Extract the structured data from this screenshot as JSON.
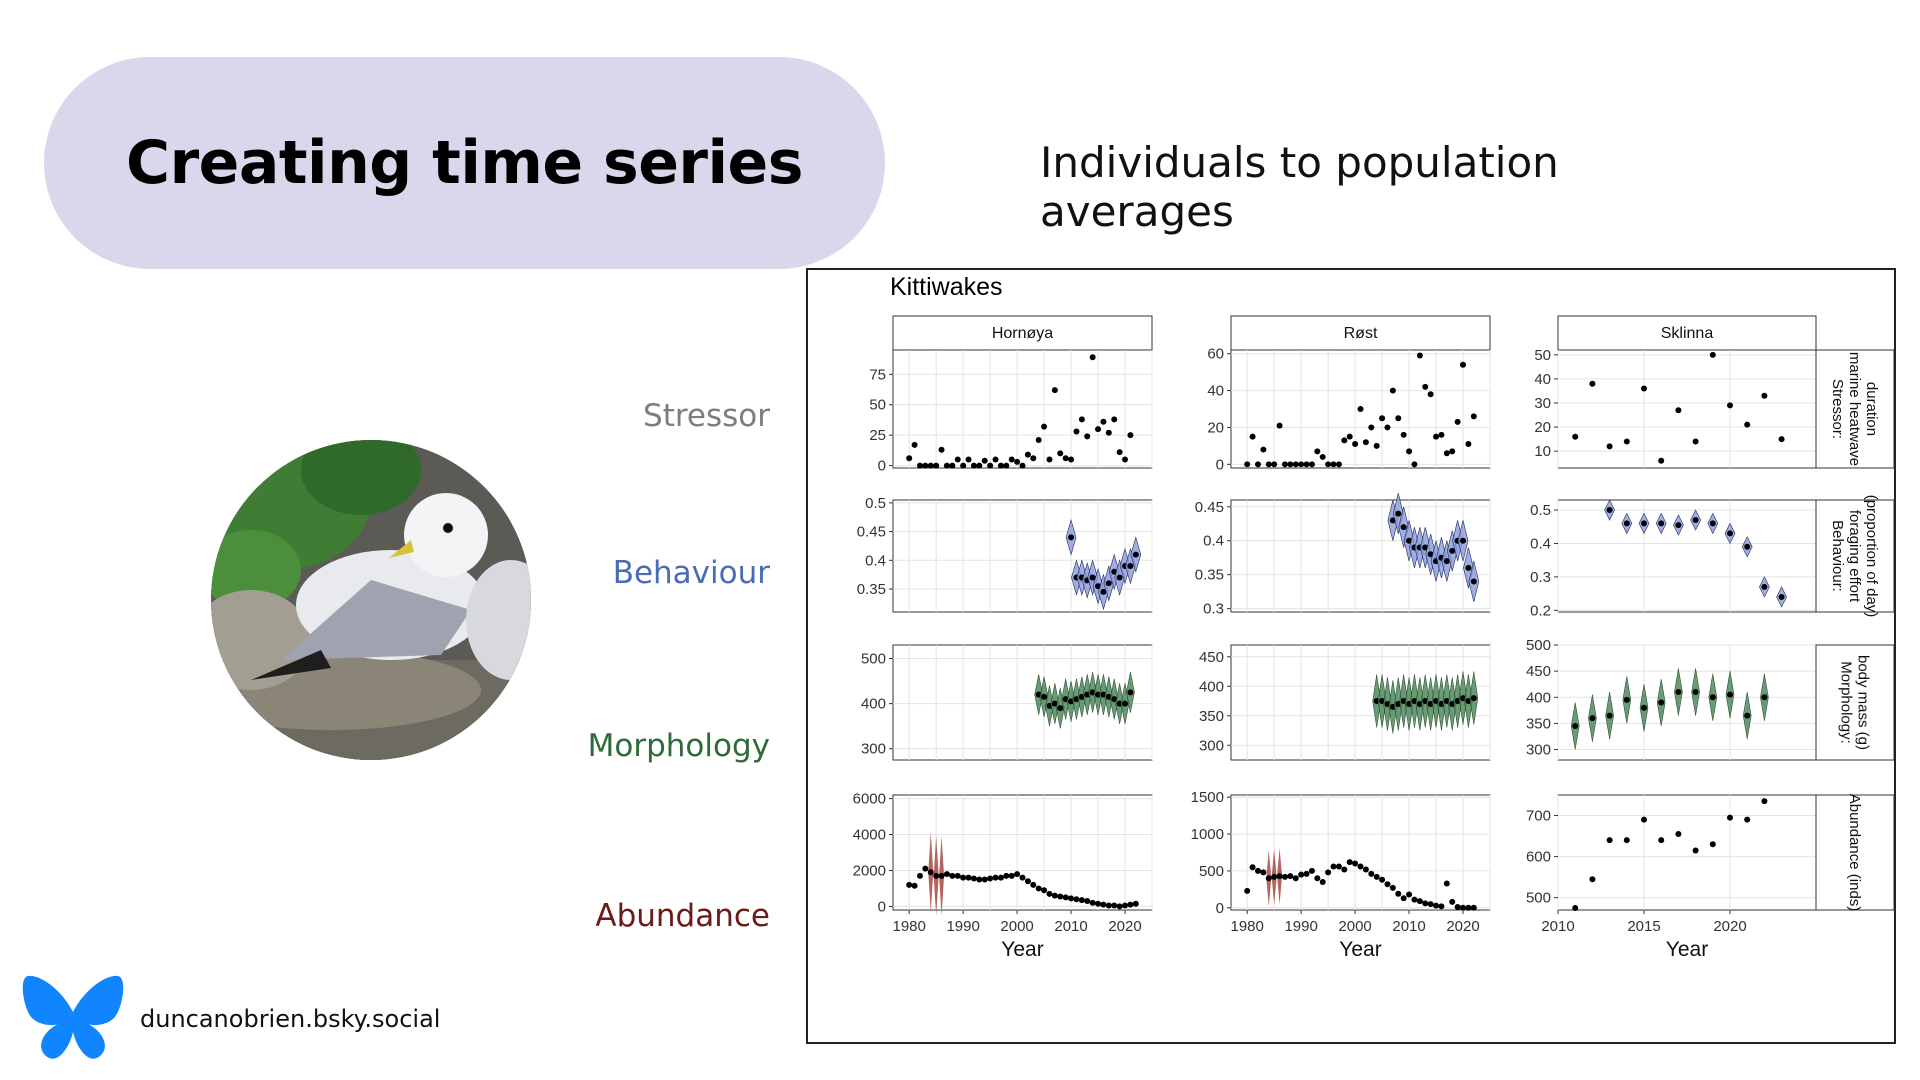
{
  "slide": {
    "title": "Creating time series",
    "subtitle": "Individuals to population averages",
    "handle": "duncanobrien.bsky.social",
    "row_labels": [
      {
        "text": "Stressor",
        "color": "#7d7d7d"
      },
      {
        "text": "Behaviour",
        "color": "#4a6cb6"
      },
      {
        "text": "Morphology",
        "color": "#2f6b38"
      },
      {
        "text": "Abundance",
        "color": "#6b1a18"
      }
    ],
    "icons": {
      "logo": "butterfly-logo-icon",
      "photo": "kittiwake-photo"
    },
    "colors": {
      "pill": "#dcd6ec",
      "logo": "#1185fe",
      "behaviour_fill": "#8a9bd8",
      "morphology_fill": "#4f8a5c",
      "abundance_fill": "#a0403a"
    }
  },
  "chart_data": {
    "type": "scatter",
    "title": "Kittiwakes",
    "xlabel": "Year",
    "columns": [
      "Hornøya",
      "Røst",
      "Sklinna"
    ],
    "rows": [
      "Stressor: marine heatwave duration",
      "Behaviour: foraging effort (proportion of day)",
      "Morphology: body mass (g)",
      "Abundance (inds)"
    ],
    "xlims": [
      [
        1977,
        2025
      ],
      [
        1977,
        2025
      ],
      [
        2010,
        2025
      ]
    ],
    "xticks": [
      [
        1980,
        1990,
        2000,
        2010,
        2020
      ],
      [
        1980,
        1990,
        2000,
        2010,
        2020
      ],
      [
        2010,
        2015,
        2020
      ]
    ],
    "panels": [
      [
        {
          "ylim": [
            -2,
            95
          ],
          "yticks": [
            0,
            25,
            50,
            75
          ],
          "x": [
            1980,
            1981,
            1982,
            1983,
            1984,
            1985,
            1986,
            1987,
            1988,
            1989,
            1990,
            1991,
            1992,
            1993,
            1994,
            1995,
            1996,
            1997,
            1998,
            1999,
            2000,
            2001,
            2002,
            2003,
            2004,
            2005,
            2006,
            2007,
            2008,
            2009,
            2010,
            2011,
            2012,
            2013,
            2014,
            2015,
            2016,
            2017,
            2018,
            2019,
            2020,
            2021
          ],
          "y": [
            6,
            17,
            0,
            0,
            0,
            0,
            13,
            0,
            0,
            5,
            0,
            5,
            0,
            0,
            4,
            0,
            5,
            0,
            0,
            5,
            3,
            0,
            9,
            6,
            21,
            32,
            5,
            62,
            10,
            6,
            5,
            28,
            38,
            24,
            89,
            30,
            36,
            27,
            38,
            11,
            5,
            25
          ]
        },
        {
          "ylim": [
            0.31,
            0.505
          ],
          "yticks": [
            0.35,
            0.4,
            0.45,
            0.5
          ],
          "x": [
            2010,
            2011,
            2012,
            2013,
            2014,
            2015,
            2016,
            2017,
            2018,
            2019,
            2020,
            2021,
            2022
          ],
          "y": [
            0.44,
            0.37,
            0.37,
            0.365,
            0.37,
            0.355,
            0.345,
            0.36,
            0.38,
            0.37,
            0.39,
            0.39,
            0.41
          ]
        },
        {
          "ylim": [
            275,
            530
          ],
          "yticks": [
            300,
            400,
            500
          ],
          "x": [
            2004,
            2005,
            2006,
            2007,
            2008,
            2009,
            2010,
            2011,
            2012,
            2013,
            2014,
            2015,
            2016,
            2017,
            2018,
            2019,
            2020,
            2021
          ],
          "y": [
            420,
            415,
            395,
            400,
            390,
            410,
            405,
            410,
            415,
            420,
            425,
            420,
            420,
            415,
            410,
            400,
            400,
            425
          ]
        },
        {
          "ylim": [
            -200,
            6200
          ],
          "yticks": [
            0,
            2000,
            4000,
            6000
          ],
          "x": [
            1980,
            1981,
            1982,
            1983,
            1984,
            1985,
            1986,
            1987,
            1988,
            1989,
            1990,
            1991,
            1992,
            1993,
            1994,
            1995,
            1996,
            1997,
            1998,
            1999,
            2000,
            2001,
            2002,
            2003,
            2004,
            2005,
            2006,
            2007,
            2008,
            2009,
            2010,
            2011,
            2012,
            2013,
            2014,
            2015,
            2016,
            2017,
            2018,
            2019,
            2020,
            2021,
            2022
          ],
          "y": [
            1200,
            1150,
            1700,
            2100,
            1900,
            1700,
            1700,
            1800,
            1700,
            1700,
            1600,
            1600,
            1550,
            1500,
            1500,
            1550,
            1600,
            1600,
            1700,
            1700,
            1800,
            1600,
            1400,
            1200,
            1000,
            900,
            700,
            600,
            550,
            500,
            450,
            400,
            350,
            300,
            200,
            150,
            100,
            50,
            50,
            0,
            50,
            100,
            150
          ]
        }
      ],
      [
        {
          "ylim": [
            -2,
            62
          ],
          "yticks": [
            0,
            20,
            40,
            60
          ],
          "x": [
            1980,
            1981,
            1982,
            1983,
            1984,
            1985,
            1986,
            1987,
            1988,
            1989,
            1990,
            1991,
            1992,
            1993,
            1994,
            1995,
            1996,
            1997,
            1998,
            1999,
            2000,
            2001,
            2002,
            2003,
            2004,
            2005,
            2006,
            2007,
            2008,
            2009,
            2010,
            2011,
            2012,
            2013,
            2014,
            2015,
            2016,
            2017,
            2018,
            2019,
            2020,
            2021,
            2022
          ],
          "y": [
            0,
            15,
            0,
            8,
            0,
            0,
            21,
            0,
            0,
            0,
            0,
            0,
            0,
            7,
            4,
            0,
            0,
            0,
            13,
            15,
            11,
            30,
            12,
            20,
            10,
            25,
            20,
            40,
            25,
            16,
            7,
            0,
            59,
            42,
            38,
            15,
            16,
            6,
            7,
            23,
            54,
            11,
            26
          ]
        },
        {
          "ylim": [
            0.295,
            0.46
          ],
          "yticks": [
            0.3,
            0.35,
            0.4,
            0.45
          ],
          "x": [
            2007,
            2008,
            2009,
            2010,
            2011,
            2012,
            2013,
            2014,
            2015,
            2016,
            2017,
            2018,
            2019,
            2020,
            2021,
            2022
          ],
          "y": [
            0.43,
            0.44,
            0.42,
            0.4,
            0.39,
            0.39,
            0.39,
            0.38,
            0.37,
            0.375,
            0.37,
            0.385,
            0.4,
            0.4,
            0.36,
            0.34
          ]
        },
        {
          "ylim": [
            275,
            470
          ],
          "yticks": [
            300,
            350,
            400,
            450
          ],
          "x": [
            2004,
            2005,
            2006,
            2007,
            2008,
            2009,
            2010,
            2011,
            2012,
            2013,
            2014,
            2015,
            2016,
            2017,
            2018,
            2019,
            2020,
            2021,
            2022
          ],
          "y": [
            375,
            375,
            370,
            365,
            370,
            375,
            370,
            375,
            370,
            375,
            370,
            375,
            370,
            375,
            370,
            375,
            380,
            375,
            380
          ]
        },
        {
          "ylim": [
            -30,
            1530
          ],
          "yticks": [
            0,
            500,
            1000,
            1500
          ],
          "x": [
            1980,
            1981,
            1982,
            1983,
            1984,
            1985,
            1986,
            1987,
            1988,
            1989,
            1990,
            1991,
            1992,
            1993,
            1994,
            1995,
            1996,
            1997,
            1998,
            1999,
            2000,
            2001,
            2002,
            2003,
            2004,
            2005,
            2006,
            2007,
            2008,
            2009,
            2010,
            2011,
            2012,
            2013,
            2014,
            2015,
            2016,
            2017,
            2018,
            2019,
            2020,
            2021,
            2022
          ],
          "y": [
            230,
            550,
            500,
            480,
            400,
            420,
            430,
            420,
            430,
            400,
            450,
            460,
            500,
            400,
            350,
            480,
            560,
            560,
            520,
            620,
            600,
            560,
            520,
            460,
            420,
            380,
            320,
            270,
            190,
            130,
            180,
            110,
            90,
            60,
            50,
            30,
            20,
            330,
            80,
            10,
            0,
            0,
            0
          ]
        }
      ],
      [
        {
          "ylim": [
            3,
            52
          ],
          "yticks": [
            10,
            20,
            30,
            40,
            50
          ],
          "x": [
            2011,
            2012,
            2013,
            2014,
            2015,
            2016,
            2017,
            2018,
            2019,
            2020,
            2021,
            2022,
            2023
          ],
          "y": [
            16,
            38,
            12,
            14,
            36,
            6,
            27,
            14,
            50,
            29,
            21,
            33,
            15
          ]
        },
        {
          "ylim": [
            0.195,
            0.53
          ],
          "yticks": [
            0.2,
            0.3,
            0.4,
            0.5
          ],
          "x": [
            2013,
            2014,
            2015,
            2016,
            2017,
            2018,
            2019,
            2020,
            2021,
            2022,
            2023
          ],
          "y": [
            0.5,
            0.46,
            0.46,
            0.46,
            0.455,
            0.47,
            0.46,
            0.43,
            0.39,
            0.27,
            0.24
          ]
        },
        {
          "ylim": [
            280,
            500
          ],
          "yticks": [
            300,
            350,
            400,
            450,
            500
          ],
          "x": [
            2011,
            2012,
            2013,
            2014,
            2015,
            2016,
            2017,
            2018,
            2019,
            2020,
            2021,
            2022
          ],
          "y": [
            345,
            360,
            365,
            395,
            380,
            390,
            410,
            410,
            400,
            405,
            365,
            400
          ]
        },
        {
          "ylim": [
            470,
            750
          ],
          "yticks": [
            500,
            600,
            700
          ],
          "x": [
            2011,
            2012,
            2013,
            2014,
            2015,
            2016,
            2017,
            2018,
            2019,
            2020,
            2021,
            2022
          ],
          "y": [
            475,
            545,
            640,
            640,
            690,
            640,
            655,
            615,
            630,
            695,
            690,
            735
          ]
        }
      ]
    ]
  }
}
